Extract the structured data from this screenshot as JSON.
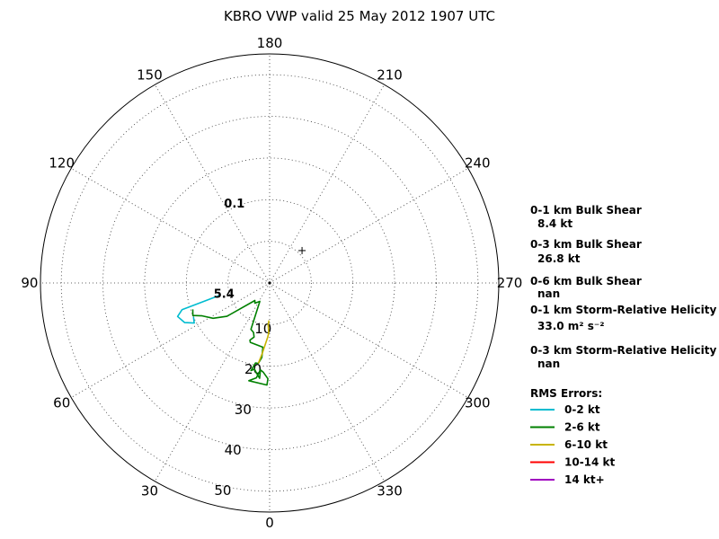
{
  "chart_data": {
    "type": "polar-hodograph",
    "title": "KBRO VWP valid 25 May 2012 1907 UTC",
    "azimuth_labels": [
      "0",
      "30",
      "60",
      "90",
      "120",
      "150",
      "180",
      "210",
      "240",
      "270",
      "300",
      "330"
    ],
    "azimuth_values": [
      0,
      30,
      60,
      90,
      120,
      150,
      180,
      210,
      240,
      270,
      300,
      330
    ],
    "ring_labels": [
      "10",
      "20",
      "30",
      "40",
      "50"
    ],
    "ring_values": [
      10,
      20,
      30,
      40,
      50
    ],
    "r_max": 55,
    "grid": true,
    "storm_motion": {
      "direction": 225,
      "speed": 11
    },
    "annotations": [
      {
        "text": "0.1",
        "direction": 155,
        "speed": 20
      },
      {
        "text": "5.4",
        "direction": 72,
        "speed": 11.5
      }
    ],
    "series": [
      {
        "name": "0-2 kt",
        "color": "#00bcd0",
        "points": [
          [
            76,
            12.5
          ],
          [
            73,
            22
          ],
          [
            70,
            23.5
          ],
          [
            65,
            22.5
          ],
          [
            62,
            20.5
          ],
          [
            66,
            20
          ]
        ]
      },
      {
        "name": "2-6 kt",
        "color": "#008000",
        "points": [
          [
            71,
            19.5
          ],
          [
            67,
            20
          ],
          [
            64,
            18
          ],
          [
            58,
            16
          ],
          [
            52,
            13
          ],
          [
            40,
            5.5
          ],
          [
            36,
            6
          ],
          [
            28,
            5
          ],
          [
            22,
            12
          ],
          [
            18,
            12.5
          ],
          [
            16,
            13.5
          ],
          [
            19,
            14.5
          ],
          [
            18,
            15
          ],
          [
            6,
            15.5
          ],
          [
            6,
            17
          ],
          [
            6,
            18
          ],
          [
            8,
            19.5
          ],
          [
            10,
            19.5
          ],
          [
            12,
            21.5
          ],
          [
            10,
            21
          ],
          [
            8,
            22
          ],
          [
            6,
            23
          ],
          [
            6,
            21
          ],
          [
            8,
            23
          ],
          [
            12,
            24
          ],
          [
            1.5,
            24.5
          ],
          [
            1,
            23
          ],
          [
            4,
            21.5
          ],
          [
            6,
            21
          ]
        ]
      },
      {
        "name": "6-10 kt",
        "color": "#c8b400",
        "points": [
          [
            8,
            19.5
          ],
          [
            6,
            17
          ],
          [
            2,
            13
          ],
          [
            1,
            12
          ],
          [
            2,
            10
          ],
          [
            1,
            9
          ]
        ]
      },
      {
        "name": "10-14 kt",
        "color": "#ff0000",
        "points": []
      },
      {
        "name": "14 kt+",
        "color": "#a000c0",
        "points": []
      }
    ]
  },
  "side_panel": {
    "shear01_label": "0-1 km Bulk Shear",
    "shear01_value": "8.4 kt",
    "shear03_label": "0-3 km Bulk Shear",
    "shear03_value": "26.8 kt",
    "shear06_label": "0-6 km Bulk Shear",
    "shear06_value": "nan",
    "srh01_label": "0-1 km Storm-Relative Helicity",
    "srh01_value": "33.0 m² s⁻²",
    "srh03_label": "0-3 km Storm-Relative Helicity",
    "srh03_value": "nan",
    "legend_title": "RMS Errors:"
  }
}
